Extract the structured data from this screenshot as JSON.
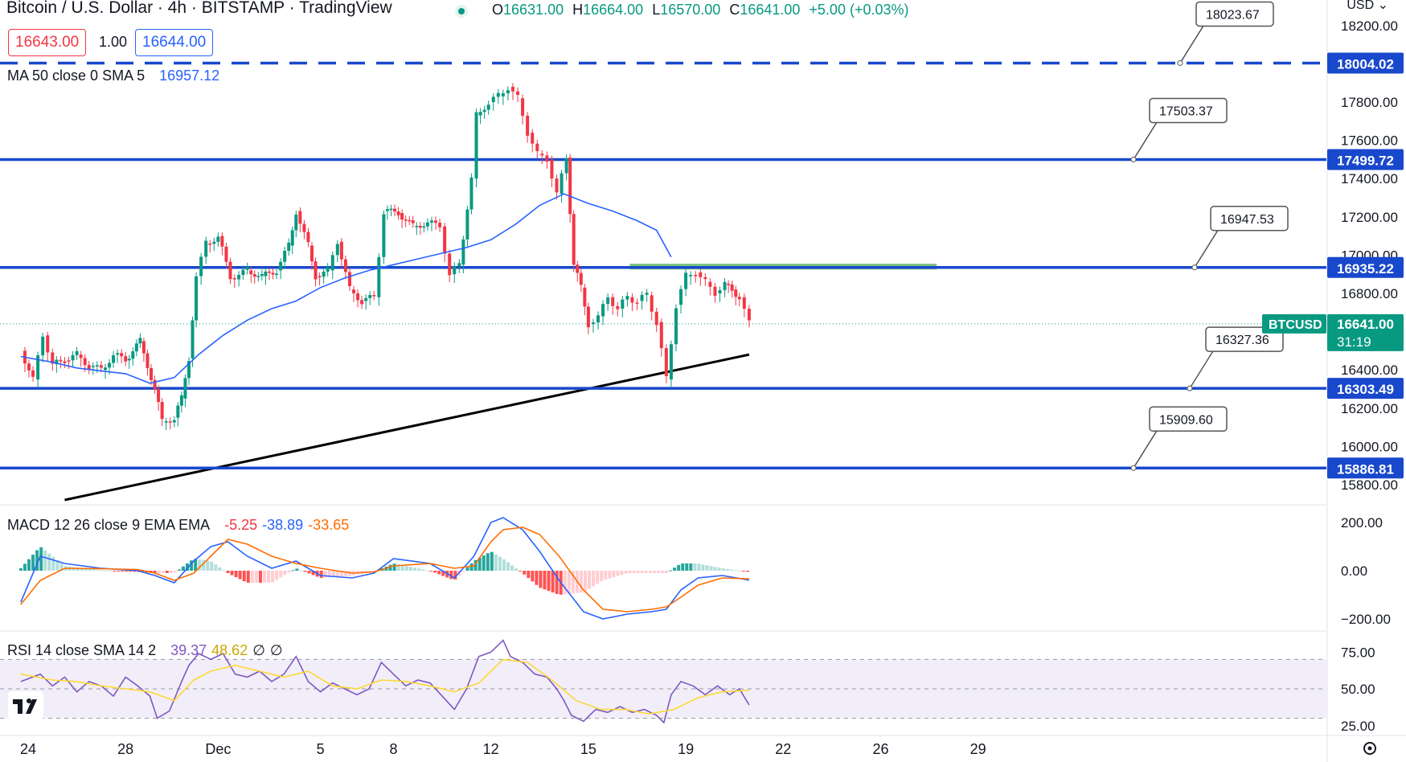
{
  "header": {
    "title": "Bitcoin / U.S. Dollar · 4h · BITSTAMP · TradingView",
    "ohlc": {
      "o_label": "O",
      "o": "16631.00",
      "h_label": "H",
      "h": "16664.00",
      "l_label": "L",
      "l": "16570.00",
      "c_label": "C",
      "c": "16641.00",
      "change": "+5.00 (+0.03%)"
    },
    "sell_price": "16643.00",
    "quantity": "1.00",
    "buy_price": "16644.00",
    "currency": "USD"
  },
  "indicators": {
    "ma": {
      "label": "MA 50 close 0 SMA 5",
      "value": "16957.12"
    },
    "macd": {
      "label": "MACD 12 26 close 9 EMA EMA",
      "hist": "-5.25",
      "macd": "-38.89",
      "signal": "-33.65"
    },
    "rsi": {
      "label": "RSI 14 close SMA 14 2",
      "rsi": "39.37",
      "sma": "48.62",
      "v3": "∅",
      "v4": "∅"
    }
  },
  "colors": {
    "up": "#089981",
    "down": "#f23645",
    "level": "#1848cc",
    "ma": "#2962ff",
    "macd": "#2962ff",
    "signal": "#ff6d00",
    "rsi": "#7e57c2",
    "rsi_sma": "#fdd835"
  },
  "chart_data": {
    "type": "line",
    "symbol": "BTCUSD",
    "last_price": "16641.00",
    "countdown": "31:19",
    "price_axis": {
      "min": 15720,
      "max": 18300,
      "ticks": [
        "18200.00",
        "17800.00",
        "17600.00",
        "17400.00",
        "17200.00",
        "17000.00",
        "16800.00",
        "16400.00",
        "16200.00",
        "16000.00",
        "15800.00"
      ]
    },
    "x_ticks": [
      "24",
      "28",
      "Dec",
      "5",
      "8",
      "12",
      "15",
      "19",
      "22",
      "26",
      "29"
    ],
    "levels": [
      {
        "price": 18004.02,
        "label": "18004.02",
        "callout": "18023.67",
        "dashed": true
      },
      {
        "price": 17499.72,
        "label": "17499.72",
        "callout": "17503.37",
        "dashed": false
      },
      {
        "price": 16935.22,
        "label": "16935.22",
        "callout": "16947.53",
        "dashed": false
      },
      {
        "price": 16303.49,
        "label": "16303.49",
        "callout": "16327.36",
        "dashed": false
      },
      {
        "price": 15886.81,
        "label": "15886.81",
        "callout": "15909.60",
        "dashed": false
      }
    ],
    "trendline": {
      "label": "ascending trendline",
      "start": {
        "day": 1.5,
        "price": 15720
      },
      "end": {
        "day": 29.6,
        "price": 16480
      }
    },
    "ma_series": [
      [
        -0.3,
        16470
      ],
      [
        1,
        16440
      ],
      [
        2,
        16410
      ],
      [
        3,
        16395
      ],
      [
        4,
        16380
      ],
      [
        5,
        16330
      ],
      [
        6,
        16360
      ],
      [
        7,
        16480
      ],
      [
        8,
        16580
      ],
      [
        9,
        16660
      ],
      [
        10,
        16720
      ],
      [
        11,
        16760
      ],
      [
        12,
        16830
      ],
      [
        13,
        16880
      ],
      [
        14,
        16920
      ],
      [
        15,
        16950
      ],
      [
        16,
        16980
      ],
      [
        17,
        17010
      ],
      [
        18,
        17040
      ],
      [
        19,
        17080
      ],
      [
        20,
        17160
      ],
      [
        21,
        17260
      ],
      [
        22,
        17320
      ],
      [
        22.4,
        17300
      ],
      [
        23,
        17270
      ],
      [
        24,
        17230
      ],
      [
        25,
        17180
      ],
      [
        25.8,
        17130
      ],
      [
        26.4,
        16990
      ]
    ],
    "price_path": [
      [
        -0.3,
        16500
      ],
      [
        0.2,
        16350
      ],
      [
        0.6,
        16580
      ],
      [
        1,
        16430
      ],
      [
        1.5,
        16450
      ],
      [
        2,
        16480
      ],
      [
        2.5,
        16420
      ],
      [
        3,
        16400
      ],
      [
        3.5,
        16480
      ],
      [
        4,
        16450
      ],
      [
        4.6,
        16550
      ],
      [
        5.2,
        16300
      ],
      [
        5.5,
        16130
      ],
      [
        6,
        16150
      ],
      [
        6.3,
        16250
      ],
      [
        6.6,
        16460
      ],
      [
        6.9,
        16890
      ],
      [
        7.3,
        17060
      ],
      [
        7.8,
        17100
      ],
      [
        8.3,
        16880
      ],
      [
        9,
        16920
      ],
      [
        9.6,
        16890
      ],
      [
        10.2,
        16920
      ],
      [
        10.7,
        17050
      ],
      [
        11,
        17230
      ],
      [
        11.5,
        17050
      ],
      [
        11.8,
        16890
      ],
      [
        12.3,
        16920
      ],
      [
        12.7,
        17070
      ],
      [
        13.2,
        16820
      ],
      [
        13.7,
        16760
      ],
      [
        14.2,
        16780
      ],
      [
        14.6,
        17230
      ],
      [
        15.2,
        17220
      ],
      [
        15.8,
        17150
      ],
      [
        16.4,
        17170
      ],
      [
        16.9,
        17150
      ],
      [
        17.3,
        16900
      ],
      [
        17.7,
        16950
      ],
      [
        18.2,
        17400
      ],
      [
        18.4,
        17730
      ],
      [
        18.9,
        17800
      ],
      [
        19.3,
        17830
      ],
      [
        19.7,
        17880
      ],
      [
        20.1,
        17820
      ],
      [
        20.5,
        17640
      ],
      [
        20.9,
        17530
      ],
      [
        21.3,
        17500
      ],
      [
        21.7,
        17320
      ],
      [
        22.1,
        17510
      ],
      [
        22.4,
        16950
      ],
      [
        22.7,
        16830
      ],
      [
        23,
        16640
      ],
      [
        23.4,
        16680
      ],
      [
        23.8,
        16780
      ],
      [
        24.2,
        16720
      ],
      [
        24.6,
        16780
      ],
      [
        25,
        16760
      ],
      [
        25.4,
        16790
      ],
      [
        25.8,
        16650
      ],
      [
        26.2,
        16350
      ],
      [
        26.6,
        16740
      ],
      [
        27,
        16890
      ],
      [
        27.4,
        16910
      ],
      [
        27.8,
        16860
      ],
      [
        28.2,
        16800
      ],
      [
        28.6,
        16850
      ],
      [
        28.9,
        16820
      ],
      [
        29.2,
        16780
      ],
      [
        29.6,
        16641
      ]
    ]
  },
  "macd_series": {
    "axis": [
      "200.00",
      "0.00",
      "−200.00"
    ],
    "macd": [
      [
        -0.3,
        -130
      ],
      [
        0.5,
        60
      ],
      [
        1.5,
        30
      ],
      [
        3,
        10
      ],
      [
        4.5,
        0
      ],
      [
        5.2,
        -20
      ],
      [
        6,
        -50
      ],
      [
        6.8,
        40
      ],
      [
        7.5,
        100
      ],
      [
        8.2,
        120
      ],
      [
        9,
        60
      ],
      [
        10,
        10
      ],
      [
        11,
        40
      ],
      [
        12,
        -20
      ],
      [
        13.3,
        -30
      ],
      [
        14.2,
        -10
      ],
      [
        15,
        50
      ],
      [
        16.5,
        30
      ],
      [
        17.5,
        -30
      ],
      [
        18.3,
        60
      ],
      [
        19,
        200
      ],
      [
        19.5,
        220
      ],
      [
        20.3,
        170
      ],
      [
        21,
        80
      ],
      [
        21.8,
        -40
      ],
      [
        22.8,
        -170
      ],
      [
        23.6,
        -200
      ],
      [
        24.6,
        -180
      ],
      [
        25.6,
        -170
      ],
      [
        26.2,
        -160
      ],
      [
        26.8,
        -80
      ],
      [
        27.5,
        -30
      ],
      [
        28.5,
        -20
      ],
      [
        29.6,
        -39
      ]
    ],
    "signal": [
      [
        -0.3,
        -140
      ],
      [
        0.5,
        -40
      ],
      [
        1.5,
        10
      ],
      [
        3,
        8
      ],
      [
        4.5,
        5
      ],
      [
        5.2,
        -10
      ],
      [
        6,
        -40
      ],
      [
        6.8,
        -10
      ],
      [
        7.5,
        60
      ],
      [
        8.2,
        130
      ],
      [
        9,
        110
      ],
      [
        10,
        60
      ],
      [
        11,
        30
      ],
      [
        12,
        10
      ],
      [
        13.3,
        -10
      ],
      [
        14.2,
        -5
      ],
      [
        15,
        20
      ],
      [
        16.5,
        30
      ],
      [
        17.5,
        10
      ],
      [
        18.3,
        20
      ],
      [
        19,
        120
      ],
      [
        19.5,
        170
      ],
      [
        20.3,
        180
      ],
      [
        21,
        150
      ],
      [
        21.8,
        60
      ],
      [
        22.8,
        -80
      ],
      [
        23.6,
        -160
      ],
      [
        24.6,
        -170
      ],
      [
        25.6,
        -160
      ],
      [
        26.2,
        -150
      ],
      [
        26.8,
        -110
      ],
      [
        27.5,
        -60
      ],
      [
        28.5,
        -30
      ],
      [
        29.6,
        -34
      ]
    ]
  },
  "rsi_series": {
    "axis": [
      "75.00",
      "50.00",
      "25.00"
    ],
    "band": [
      30,
      70
    ],
    "rsi": [
      [
        -0.3,
        55
      ],
      [
        0.5,
        60
      ],
      [
        1,
        52
      ],
      [
        1.5,
        58
      ],
      [
        2,
        48
      ],
      [
        2.5,
        55
      ],
      [
        3,
        52
      ],
      [
        3.5,
        45
      ],
      [
        4,
        58
      ],
      [
        4.5,
        52
      ],
      [
        5,
        45
      ],
      [
        5.3,
        30
      ],
      [
        5.8,
        35
      ],
      [
        6.3,
        55
      ],
      [
        6.6,
        66
      ],
      [
        7,
        74
      ],
      [
        7.5,
        70
      ],
      [
        8,
        74
      ],
      [
        8.5,
        60
      ],
      [
        9,
        58
      ],
      [
        9.5,
        62
      ],
      [
        10,
        55
      ],
      [
        10.5,
        60
      ],
      [
        11,
        72
      ],
      [
        11.5,
        55
      ],
      [
        12,
        48
      ],
      [
        12.5,
        54
      ],
      [
        13,
        50
      ],
      [
        13.5,
        46
      ],
      [
        14,
        50
      ],
      [
        14.5,
        68
      ],
      [
        15,
        60
      ],
      [
        15.5,
        52
      ],
      [
        16,
        56
      ],
      [
        16.5,
        54
      ],
      [
        17,
        45
      ],
      [
        17.5,
        36
      ],
      [
        18,
        50
      ],
      [
        18.5,
        72
      ],
      [
        19,
        75
      ],
      [
        19.5,
        83
      ],
      [
        19.8,
        72
      ],
      [
        20.3,
        68
      ],
      [
        20.8,
        60
      ],
      [
        21.3,
        58
      ],
      [
        21.7,
        50
      ],
      [
        22,
        42
      ],
      [
        22.3,
        32
      ],
      [
        22.8,
        28
      ],
      [
        23.3,
        36
      ],
      [
        23.8,
        34
      ],
      [
        24.3,
        38
      ],
      [
        24.8,
        34
      ],
      [
        25.3,
        36
      ],
      [
        25.8,
        32
      ],
      [
        26.1,
        27
      ],
      [
        26.4,
        46
      ],
      [
        26.8,
        55
      ],
      [
        27.3,
        52
      ],
      [
        27.8,
        46
      ],
      [
        28.3,
        52
      ],
      [
        28.8,
        46
      ],
      [
        29.2,
        50
      ],
      [
        29.6,
        39
      ]
    ],
    "sma": [
      [
        -0.3,
        60
      ],
      [
        1,
        56
      ],
      [
        2,
        55
      ],
      [
        3,
        52
      ],
      [
        4,
        50
      ],
      [
        5,
        48
      ],
      [
        6,
        42
      ],
      [
        6.8,
        56
      ],
      [
        7.5,
        62
      ],
      [
        8.5,
        66
      ],
      [
        9.5,
        62
      ],
      [
        10.5,
        58
      ],
      [
        11.5,
        62
      ],
      [
        12.5,
        52
      ],
      [
        13.5,
        50
      ],
      [
        14.5,
        56
      ],
      [
        15.5,
        55
      ],
      [
        16.5,
        52
      ],
      [
        17.5,
        48
      ],
      [
        18.5,
        54
      ],
      [
        19.5,
        70
      ],
      [
        20.5,
        68
      ],
      [
        21.5,
        56
      ],
      [
        22.5,
        42
      ],
      [
        23.5,
        36
      ],
      [
        24.5,
        36
      ],
      [
        25.5,
        33
      ],
      [
        26.5,
        36
      ],
      [
        27.5,
        44
      ],
      [
        28.5,
        48
      ],
      [
        29.6,
        49
      ]
    ]
  }
}
